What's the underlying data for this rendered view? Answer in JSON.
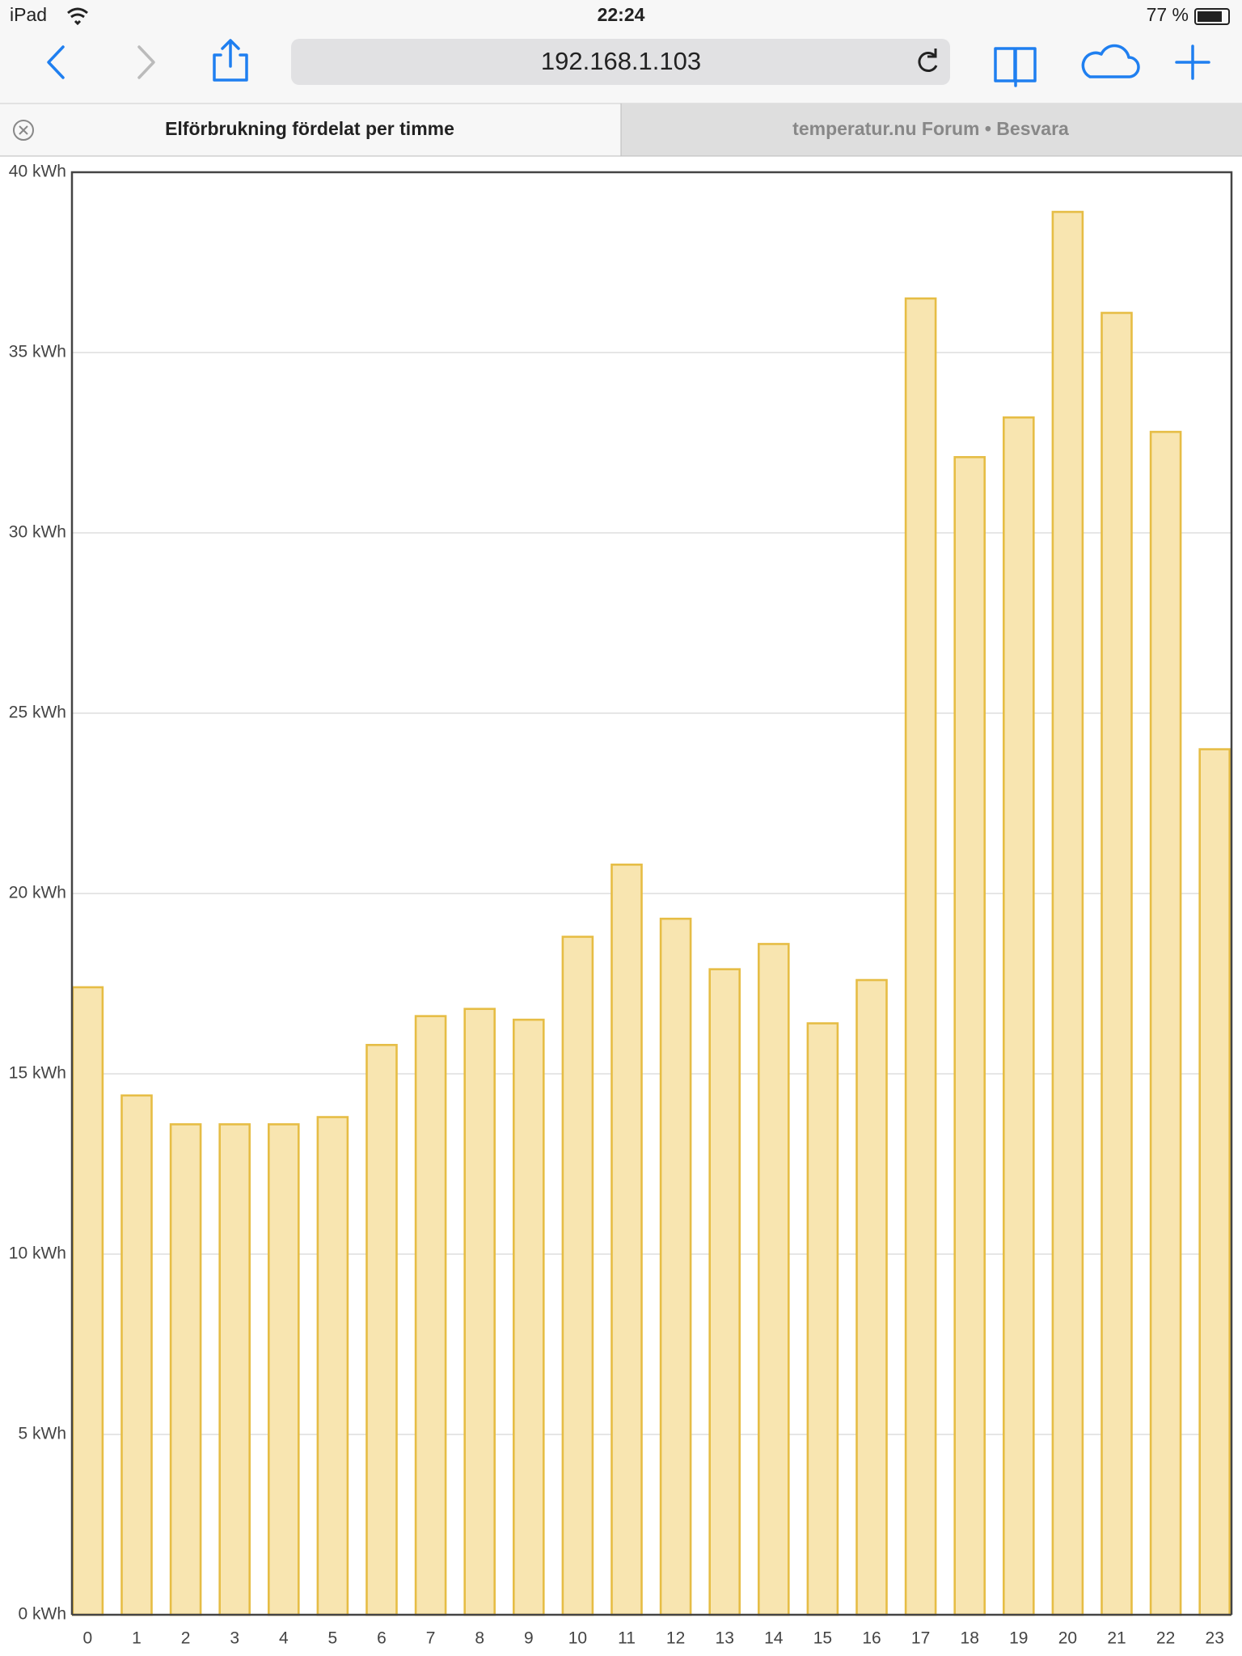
{
  "status_bar": {
    "device": "iPad",
    "time": "22:24",
    "battery": "77 %"
  },
  "toolbar": {
    "url": "192.168.1.103"
  },
  "tabs": [
    "Elförbrukning fördelat per timme",
    "temperatur.nu Forum • Besvara"
  ],
  "chart_data": {
    "type": "bar",
    "categories": [
      "0",
      "1",
      "2",
      "3",
      "4",
      "5",
      "6",
      "7",
      "8",
      "9",
      "10",
      "11",
      "12",
      "13",
      "14",
      "15",
      "16",
      "17",
      "18",
      "19",
      "20",
      "21",
      "22",
      "23"
    ],
    "values": [
      17.4,
      14.4,
      13.6,
      13.6,
      13.6,
      13.8,
      15.8,
      16.6,
      16.8,
      16.5,
      18.8,
      20.8,
      19.3,
      17.9,
      18.6,
      16.4,
      17.6,
      36.5,
      32.1,
      33.2,
      38.9,
      36.1,
      32.8,
      24.0
    ],
    "color": "#f8e5b0",
    "edge_color": "#e6bd45",
    "ylim": [
      0,
      40
    ],
    "yticks": [
      {
        "value": 0,
        "label": "0 kWh"
      },
      {
        "value": 5,
        "label": "5 kWh"
      },
      {
        "value": 10,
        "label": "10 kWh"
      },
      {
        "value": 15,
        "label": "15 kWh"
      },
      {
        "value": 20,
        "label": "20 kWh"
      },
      {
        "value": 25,
        "label": "25 kWh"
      },
      {
        "value": 30,
        "label": "30 kWh"
      },
      {
        "value": 35,
        "label": "35 kWh"
      },
      {
        "value": 40,
        "label": "40 kWh"
      }
    ],
    "grid": true
  }
}
